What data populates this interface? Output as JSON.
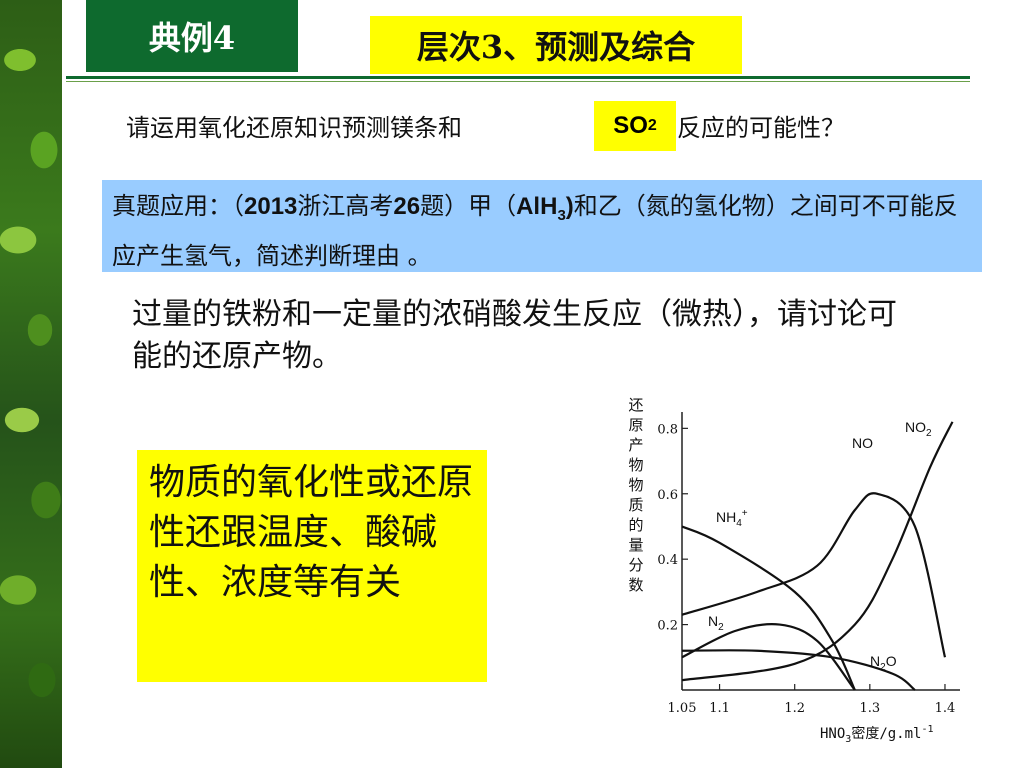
{
  "header": {
    "example_label": "典例4",
    "topic_label": "层次3、预测及综合"
  },
  "question1": {
    "prefix": "请运用氧化还原知识预测镁条和",
    "formula_main": "SO",
    "formula_sub": "2",
    "suffix": "反应的可能性？"
  },
  "exam_box": {
    "part1": "真题应用：（",
    "year": "2013",
    "part2": "浙江高考",
    "qnum": "26",
    "part3": "题）甲（",
    "formula_main": "AlH",
    "formula_sub": "3",
    "formula_close": ")",
    "part4": "和乙（氮的氢化物）之间可不可能反应产生氢气，简述判断理由 。"
  },
  "question3": "过量的铁粉和一定量的浓硝酸发生反应（微热），请讨论可能的还原产物。",
  "conclusion": "物质的氧化性或还原性还跟温度、酸碱性、浓度等有关",
  "chart_data": {
    "type": "line",
    "ylabel": "还原产物物质的量分数",
    "xlabel_main": "HNO",
    "xlabel_sub": "3",
    "xlabel_unit": "密度/g.ml",
    "xlabel_exp": "-1",
    "x_ticks": [
      "1.05",
      "1.1",
      "1.2",
      "1.3",
      "1.4"
    ],
    "y_ticks": [
      "0.8",
      "0.6",
      "0.4",
      "0.2"
    ],
    "xlim": [
      1.05,
      1.42
    ],
    "ylim": [
      0.0,
      0.85
    ],
    "series": [
      {
        "name": "NO2",
        "name_main": "NO",
        "name_sub": "2",
        "name_sup": "",
        "x": [
          1.05,
          1.2,
          1.28,
          1.33,
          1.38,
          1.41
        ],
        "y": [
          0.03,
          0.08,
          0.2,
          0.4,
          0.68,
          0.82
        ]
      },
      {
        "name": "NO",
        "name_main": "NO",
        "name_sub": "",
        "name_sup": "",
        "x": [
          1.05,
          1.15,
          1.23,
          1.28,
          1.31,
          1.36,
          1.4
        ],
        "y": [
          0.23,
          0.3,
          0.38,
          0.55,
          0.6,
          0.5,
          0.1
        ]
      },
      {
        "name": "NH4+",
        "name_main": "NH",
        "name_sub": "4",
        "name_sup": "+",
        "x": [
          1.05,
          1.1,
          1.2,
          1.25,
          1.28
        ],
        "y": [
          0.5,
          0.45,
          0.3,
          0.15,
          0.0
        ]
      },
      {
        "name": "N2",
        "name_main": "N",
        "name_sub": "2",
        "name_sup": "",
        "x": [
          1.05,
          1.12,
          1.18,
          1.23,
          1.28
        ],
        "y": [
          0.1,
          0.18,
          0.2,
          0.15,
          0.0
        ]
      },
      {
        "name": "N2O",
        "name_main": "N",
        "name_sub": "2",
        "name_sup": "O",
        "x": [
          1.05,
          1.15,
          1.25,
          1.33,
          1.36
        ],
        "y": [
          0.12,
          0.12,
          0.1,
          0.05,
          0.0
        ]
      }
    ]
  }
}
